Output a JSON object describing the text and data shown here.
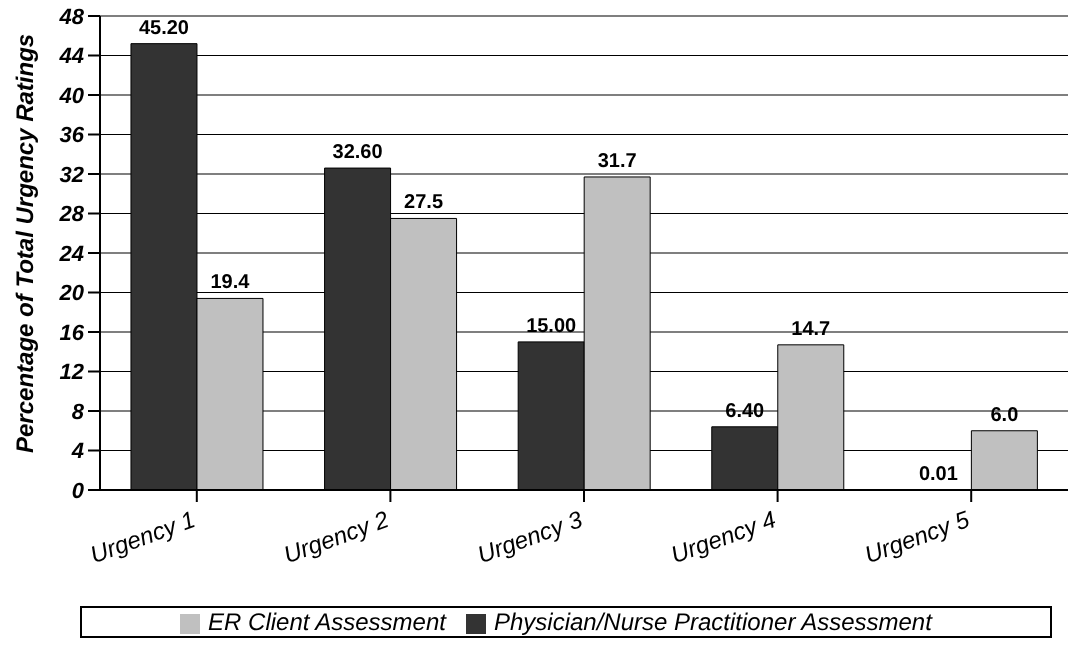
{
  "chart_data": {
    "type": "bar",
    "ylabel": "Percentage of Total Urgency Ratings",
    "categories": [
      "Urgency 1",
      "Urgency 2",
      "Urgency 3",
      "Urgency 4",
      "Urgency 5"
    ],
    "series": [
      {
        "name": "Physician/Nurse Practitioner Assessment",
        "color": "#333333",
        "values": [
          45.2,
          32.6,
          15.0,
          6.4,
          0.01
        ],
        "value_labels": [
          "45.20",
          "32.60",
          "15.00",
          "6.40",
          "0.01"
        ]
      },
      {
        "name": "ER Client Assessment",
        "color": "#c0c0c0",
        "values": [
          19.4,
          27.5,
          31.7,
          14.7,
          6.0
        ],
        "value_labels": [
          "19.4",
          "27.5",
          "31.7",
          "14.7",
          "6.0"
        ]
      }
    ],
    "ylim": [
      0,
      48
    ],
    "yticks": [
      0,
      4,
      8,
      12,
      16,
      20,
      24,
      28,
      32,
      36,
      40,
      44,
      48
    ],
    "grid": "y",
    "legend": "bottom"
  }
}
